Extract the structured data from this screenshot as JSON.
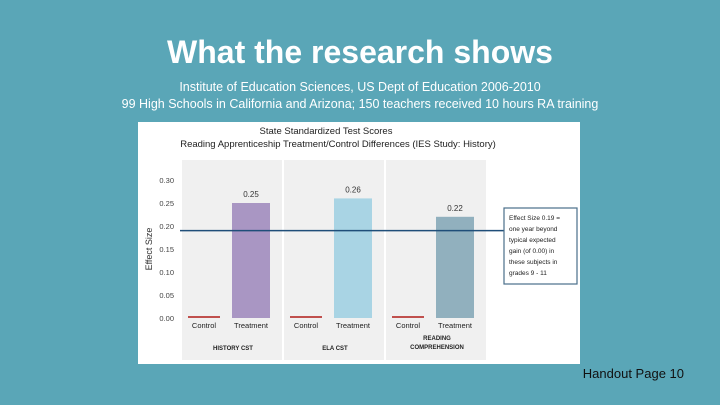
{
  "slide": {
    "title": "What the research shows",
    "subtitle_line1": "Institute of Education Sciences, US Dept of Education 2006-2010",
    "subtitle_line2": "99 High Schools in California and Arizona; 150 teachers received 10 hours RA training",
    "footer": "Handout Page 10"
  },
  "colors": {
    "background": "#5aa6b7",
    "history_treatment": "#a996c3",
    "ela_treatment": "#a9d4e4",
    "reading_treatment": "#91b0be",
    "control": "#c0504d",
    "reference_line": "#1f4e79"
  },
  "chart_data": {
    "type": "bar",
    "title": "State Standardized Test Scores",
    "subtitle": "Reading Apprenticeship Treatment/Control Differences (IES Study: History)",
    "ylabel": "Effect Size",
    "ylim": [
      0,
      0.3
    ],
    "yticks": [
      "0.30",
      "0.25",
      "0.20",
      "0.15",
      "0.10",
      "0.05",
      "0.00"
    ],
    "grid": false,
    "groups": [
      {
        "label_lines": [
          "HISTORY CST"
        ],
        "bars": [
          {
            "label": "Control",
            "value": 0.0
          },
          {
            "label": "Treatment",
            "value": 0.25,
            "value_label": "0.25"
          }
        ]
      },
      {
        "label_lines": [
          "ELA CST"
        ],
        "bars": [
          {
            "label": "Control",
            "value": 0.0
          },
          {
            "label": "Treatment",
            "value": 0.26,
            "value_label": "0.26"
          }
        ]
      },
      {
        "label_lines": [
          "READING",
          "COMPREHENSION"
        ],
        "bars": [
          {
            "label": "Control",
            "value": 0.0
          },
          {
            "label": "Treatment",
            "value": 0.22,
            "value_label": "0.22"
          }
        ]
      }
    ],
    "reference_line": {
      "value": 0.19
    },
    "annotation_lines": [
      "Effect Size 0.19 =",
      "one year beyond",
      "typical expected",
      "gain (of 0.00) in",
      "these subjects in",
      "grades 9 - 11"
    ]
  }
}
